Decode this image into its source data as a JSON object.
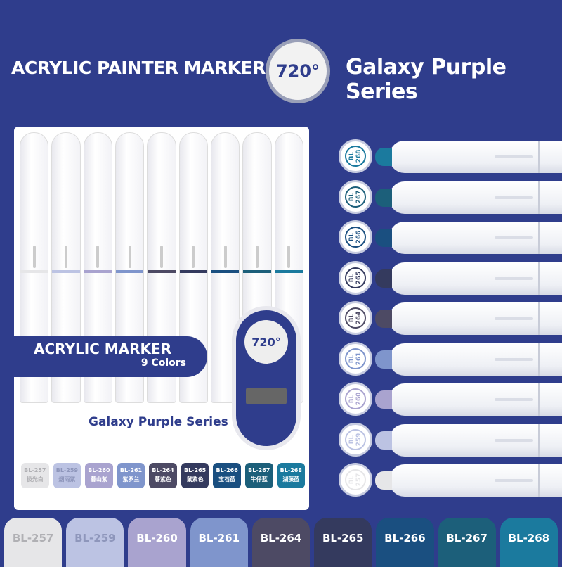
{
  "header": {
    "brand": "ACRYLIC PAINTER MARKER",
    "badge": "720°",
    "series": "Galaxy Purple Series"
  },
  "package": {
    "title": "ACRYLIC MARKER",
    "count": "9 Colors",
    "series": "Galaxy Purple Series",
    "badge": "720°"
  },
  "colors": [
    {
      "code": "BL-257",
      "name": "极光白",
      "hex": "#e6e6e8",
      "text": "#b0b0b4"
    },
    {
      "code": "BL-259",
      "name": "烟雨紫",
      "hex": "#bcc3e3",
      "text": "#8e96bb"
    },
    {
      "code": "BL-260",
      "name": "暮山紫",
      "hex": "#a9a3cf",
      "text": "#ffffff"
    },
    {
      "code": "BL-261",
      "name": "紫罗兰",
      "hex": "#7f95cc",
      "text": "#ffffff"
    },
    {
      "code": "BL-264",
      "name": "薯紫色",
      "hex": "#4d4a64",
      "text": "#ffffff"
    },
    {
      "code": "BL-265",
      "name": "鼠紫色",
      "hex": "#343a5e",
      "text": "#ffffff"
    },
    {
      "code": "BL-266",
      "name": "宝石蓝",
      "hex": "#1a4f80",
      "text": "#ffffff"
    },
    {
      "code": "BL-267",
      "name": "牛仔蓝",
      "hex": "#1c5f7a",
      "text": "#ffffff"
    },
    {
      "code": "BL-268",
      "name": "湖藻蓝",
      "hex": "#1b7a9e",
      "text": "#ffffff"
    }
  ],
  "marker_labels": [
    "BL 268",
    "BL 267",
    "BL 266",
    "BL 265",
    "BL 264",
    "BL 261",
    "BL 260",
    "BL 259",
    "BL 257"
  ]
}
